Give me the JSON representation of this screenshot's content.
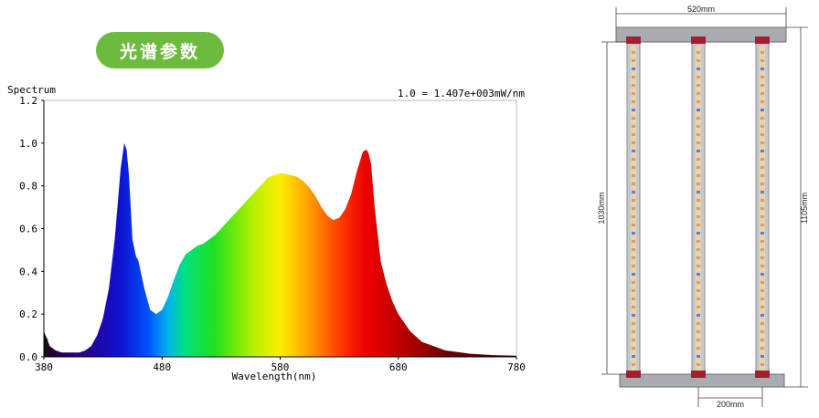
{
  "badge": {
    "label": "光谱参数"
  },
  "chart_data": {
    "type": "area",
    "ylabel": "Spectrum",
    "xlabel": "Wavelength(nm)",
    "annotation": "1.0 = 1.407e+003mW/nm",
    "xlim": [
      380,
      780
    ],
    "ylim": [
      0,
      1.2
    ],
    "x_ticks": [
      "380",
      "480",
      "580",
      "680",
      "780"
    ],
    "y_ticks": [
      "0.0",
      "0.2",
      "0.4",
      "0.6",
      "0.8",
      "1.0",
      "1.2"
    ],
    "grid": false,
    "fill": "wavelength-color gradient",
    "x": [
      380,
      385,
      390,
      395,
      400,
      405,
      410,
      415,
      420,
      425,
      430,
      435,
      440,
      445,
      448,
      450,
      452,
      455,
      458,
      460,
      465,
      470,
      475,
      480,
      485,
      490,
      495,
      500,
      505,
      510,
      515,
      520,
      525,
      530,
      540,
      550,
      560,
      570,
      580,
      590,
      595,
      600,
      605,
      610,
      615,
      620,
      625,
      630,
      635,
      640,
      645,
      650,
      653,
      655,
      657,
      660,
      663,
      665,
      670,
      675,
      680,
      690,
      700,
      720,
      740,
      760,
      780
    ],
    "y": [
      0.12,
      0.05,
      0.03,
      0.02,
      0.02,
      0.02,
      0.02,
      0.03,
      0.05,
      0.1,
      0.18,
      0.32,
      0.55,
      0.88,
      1.0,
      0.97,
      0.85,
      0.55,
      0.47,
      0.45,
      0.32,
      0.22,
      0.2,
      0.22,
      0.28,
      0.36,
      0.43,
      0.48,
      0.5,
      0.52,
      0.53,
      0.55,
      0.57,
      0.6,
      0.66,
      0.72,
      0.78,
      0.84,
      0.86,
      0.85,
      0.84,
      0.82,
      0.79,
      0.75,
      0.7,
      0.66,
      0.64,
      0.65,
      0.69,
      0.76,
      0.87,
      0.96,
      0.97,
      0.95,
      0.9,
      0.7,
      0.55,
      0.45,
      0.34,
      0.26,
      0.2,
      0.12,
      0.07,
      0.03,
      0.015,
      0.008,
      0.005
    ]
  },
  "fixture": {
    "top_width": "520mm",
    "height_inner": "1030mm",
    "height_total": "1105mm",
    "bar_spacing": "200mm"
  }
}
